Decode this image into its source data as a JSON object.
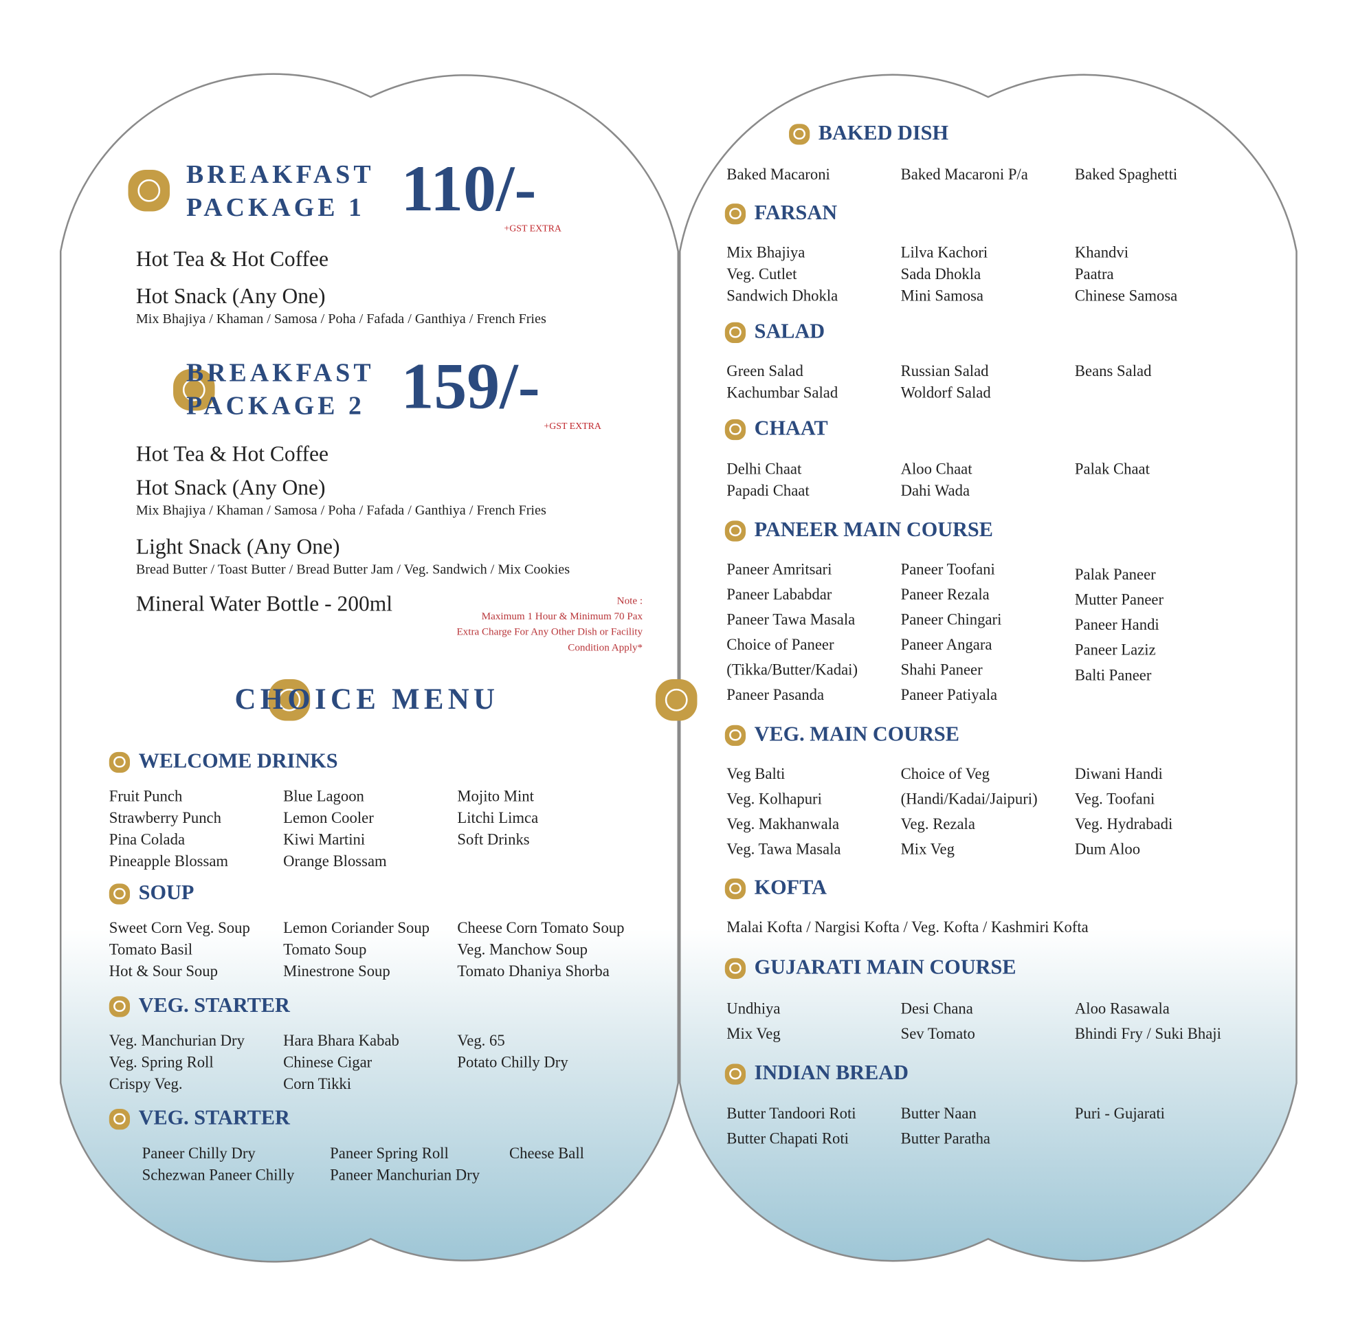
{
  "colors": {
    "heading": "#2b4a7e",
    "accent_gold": "#c59d45",
    "note_red": "#c0282d"
  },
  "package1": {
    "line1": "BREAKFAST",
    "line2": "PACKAGE 1",
    "price": "110/-",
    "gst": "+GST EXTRA",
    "drinks": "Hot Tea   &   Hot Coffee",
    "snack_title": "Hot Snack (Any One)",
    "snack_options": "Mix Bhajiya / Khaman / Samosa / Poha  / Fafada / Ganthiya / French Fries"
  },
  "package2": {
    "line1": "BREAKFAST",
    "line2": "PACKAGE 2",
    "price": "159/-",
    "gst": "+GST EXTRA",
    "drinks": "Hot Tea   &   Hot Coffee",
    "snack_title": "Hot Snack (Any One)",
    "snack_options": "Mix Bhajiya / Khaman / Samosa / Poha  / Fafada / Ganthiya / French Fries",
    "light_title": "Light Snack (Any One)",
    "light_options": "Bread Butter / Toast Butter / Bread Butter Jam / Veg. Sandwich / Mix Cookies",
    "water": "Mineral Water Bottle - 200ml"
  },
  "note": [
    "Note :",
    "Maximum 1 Hour & Minimum 70 Pax",
    "Extra Charge For Any Other Dish or Facility",
    "Condition Apply*"
  ],
  "choice_menu": "CHOICE MENU",
  "sections": [
    {
      "title": "WELCOME DRINKS",
      "columns": [
        [
          "Fruit Punch",
          "Strawberry Punch",
          "Pina Colada",
          "Pineapple Blossam"
        ],
        [
          "Blue Lagoon",
          "Lemon Cooler",
          "Kiwi Martini",
          "Orange Blossam"
        ],
        [
          "Mojito Mint",
          "Litchi Limca",
          "Soft Drinks"
        ]
      ]
    },
    {
      "title": "SOUP",
      "columns": [
        [
          "Sweet Corn Veg. Soup",
          "Tomato Basil",
          "Hot & Sour Soup"
        ],
        [
          "Lemon Coriander Soup",
          "Tomato Soup",
          "Minestrone Soup"
        ],
        [
          "Cheese Corn Tomato Soup",
          "Veg. Manchow Soup",
          "Tomato Dhaniya Shorba"
        ]
      ]
    },
    {
      "title": "VEG. STARTER",
      "columns": [
        [
          "Veg. Manchurian Dry",
          "Veg. Spring Roll",
          "Crispy Veg."
        ],
        [
          "Hara Bhara Kabab",
          "Chinese Cigar",
          "Corn Tikki"
        ],
        [
          "Veg. 65",
          "Potato Chilly Dry"
        ]
      ]
    },
    {
      "title": "VEG. STARTER",
      "columns": [
        [
          "Paneer Chilly Dry",
          "Schezwan Paneer Chilly"
        ],
        [
          "Paneer Spring Roll",
          "Paneer Manchurian Dry"
        ],
        [
          "Cheese Ball"
        ]
      ]
    },
    {
      "title": "BAKED DISH",
      "columns": [
        [
          "Baked Macaroni"
        ],
        [
          "Baked Macaroni P/a"
        ],
        [
          "Baked Spaghetti"
        ]
      ]
    },
    {
      "title": "FARSAN",
      "columns": [
        [
          "Mix Bhajiya",
          "Veg. Cutlet",
          "Sandwich Dhokla"
        ],
        [
          "Lilva Kachori",
          "Sada Dhokla",
          "Mini Samosa"
        ],
        [
          "Khandvi",
          "Paatra",
          "Chinese Samosa"
        ]
      ]
    },
    {
      "title": "SALAD",
      "columns": [
        [
          "Green Salad",
          "Kachumbar Salad"
        ],
        [
          "Russian Salad",
          "Woldorf Salad"
        ],
        [
          "Beans Salad"
        ]
      ]
    },
    {
      "title": "CHAAT",
      "columns": [
        [
          "Delhi Chaat",
          "Papadi Chaat"
        ],
        [
          "Aloo Chaat",
          "Dahi Wada"
        ],
        [
          "Palak Chaat"
        ]
      ]
    },
    {
      "title": "PANEER MAIN COURSE",
      "columns": [
        [
          "Paneer Amritsari",
          "Paneer Lababdar",
          "Paneer Tawa Masala",
          "Choice of Paneer",
          "(Tikka/Butter/Kadai)",
          "Paneer Pasanda"
        ],
        [
          "Paneer Toofani",
          "Paneer Rezala",
          "Paneer Chingari",
          "Paneer Angara",
          "Shahi Paneer",
          "Paneer Patiyala"
        ],
        [
          "Palak Paneer",
          "Mutter Paneer",
          "Paneer Handi",
          "Paneer Laziz",
          "Balti Paneer"
        ]
      ]
    },
    {
      "title": "VEG. MAIN COURSE",
      "columns": [
        [
          "Veg Balti",
          "Veg. Kolhapuri",
          "Veg. Makhanwala",
          "Veg. Tawa Masala"
        ],
        [
          "Choice of Veg",
          "(Handi/Kadai/Jaipuri)",
          "Veg. Rezala",
          "Mix Veg"
        ],
        [
          "Diwani Handi",
          "Veg. Toofani",
          "Veg. Hydrabadi",
          "Dum Aloo"
        ]
      ]
    },
    {
      "title": "KOFTA",
      "columns": [
        [
          "Malai Kofta  /  Nargisi Kofta  /  Veg. Kofta  /  Kashmiri Kofta"
        ]
      ]
    },
    {
      "title": "GUJARATI MAIN COURSE",
      "columns": [
        [
          "Undhiya",
          "Mix Veg"
        ],
        [
          "Desi Chana",
          "Sev Tomato"
        ],
        [
          "Aloo Rasawala",
          "Bhindi Fry  / Suki Bhaji"
        ]
      ]
    },
    {
      "title": "INDIAN BREAD",
      "columns": [
        [
          "Butter Tandoori Roti",
          "Butter Chapati Roti"
        ],
        [
          "Butter Naan",
          "Butter Paratha"
        ],
        [
          "Puri - Gujarati"
        ]
      ]
    }
  ]
}
